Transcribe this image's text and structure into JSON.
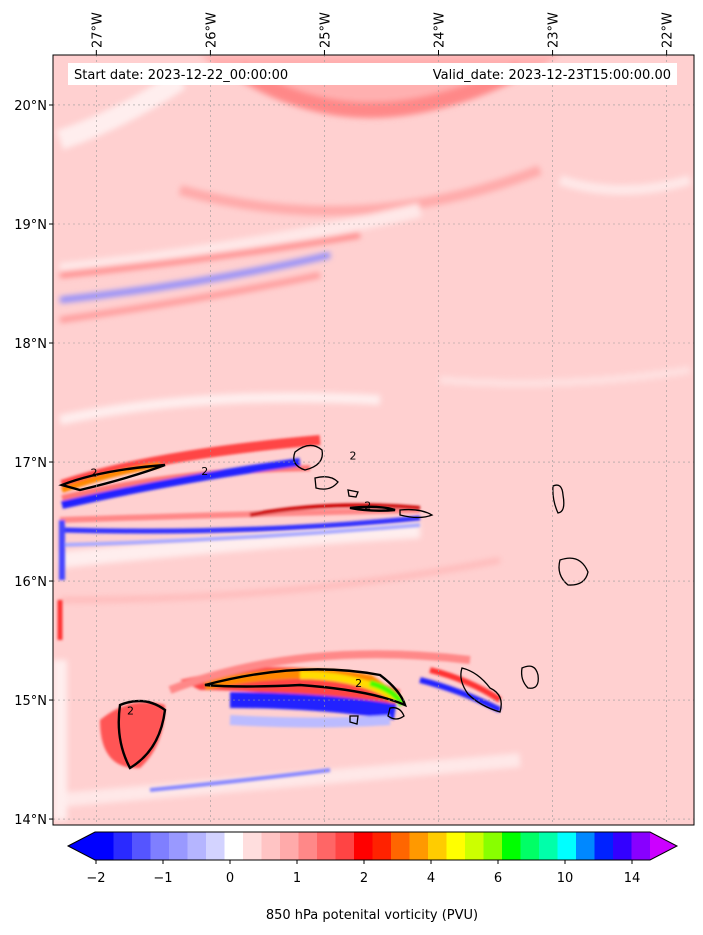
{
  "chart_data": {
    "type": "heatmap",
    "header_left": "Start date: 2023-12-22_00:00:00",
    "header_right": "Valid_date: 2023-12-23T15:00:00.00",
    "colorbar_label": "850 hPa potenital vorticity (PVU)",
    "x_ticks": [
      "27°W",
      "26°W",
      "25°W",
      "24°W",
      "23°W",
      "22°W"
    ],
    "x_tick_values": [
      -27,
      -26,
      -25,
      -24,
      -23,
      -22
    ],
    "y_ticks": [
      "14°N",
      "15°N",
      "16°N",
      "17°N",
      "18°N",
      "19°N",
      "20°N"
    ],
    "y_tick_values": [
      14,
      15,
      16,
      17,
      18,
      19,
      20
    ],
    "xlim": [
      -27.38,
      -21.76
    ],
    "ylim": [
      13.95,
      20.42
    ],
    "grid": true,
    "contour_level": 2,
    "contour_labels": [
      "2",
      "2",
      "2",
      "2",
      "2",
      "2"
    ],
    "colorbar": {
      "tick_labels": [
        "−2",
        "−1",
        "0",
        "1",
        "2",
        "4",
        "6",
        "10",
        "14"
      ],
      "colors": [
        "#0000ff",
        "#2a2aff",
        "#5555ff",
        "#7f7fff",
        "#9999ff",
        "#b5b5ff",
        "#d3d3ff",
        "#ffffff",
        "#ffdede",
        "#ffc4c4",
        "#ffaaaa",
        "#ff8888",
        "#ff6666",
        "#ff4444",
        "#ff0000",
        "#ff2200",
        "#ff6600",
        "#ff9900",
        "#ffcc00",
        "#ffff00",
        "#ccff00",
        "#88ff00",
        "#00ff00",
        "#00ff66",
        "#00ffaa",
        "#00ffff",
        "#0088ff",
        "#0022ff",
        "#3300ff",
        "#8800ff"
      ],
      "extend": "both",
      "under_color": "#0000ff",
      "over_color": "#cc00ff"
    },
    "background_color": "#ffd0d0"
  }
}
